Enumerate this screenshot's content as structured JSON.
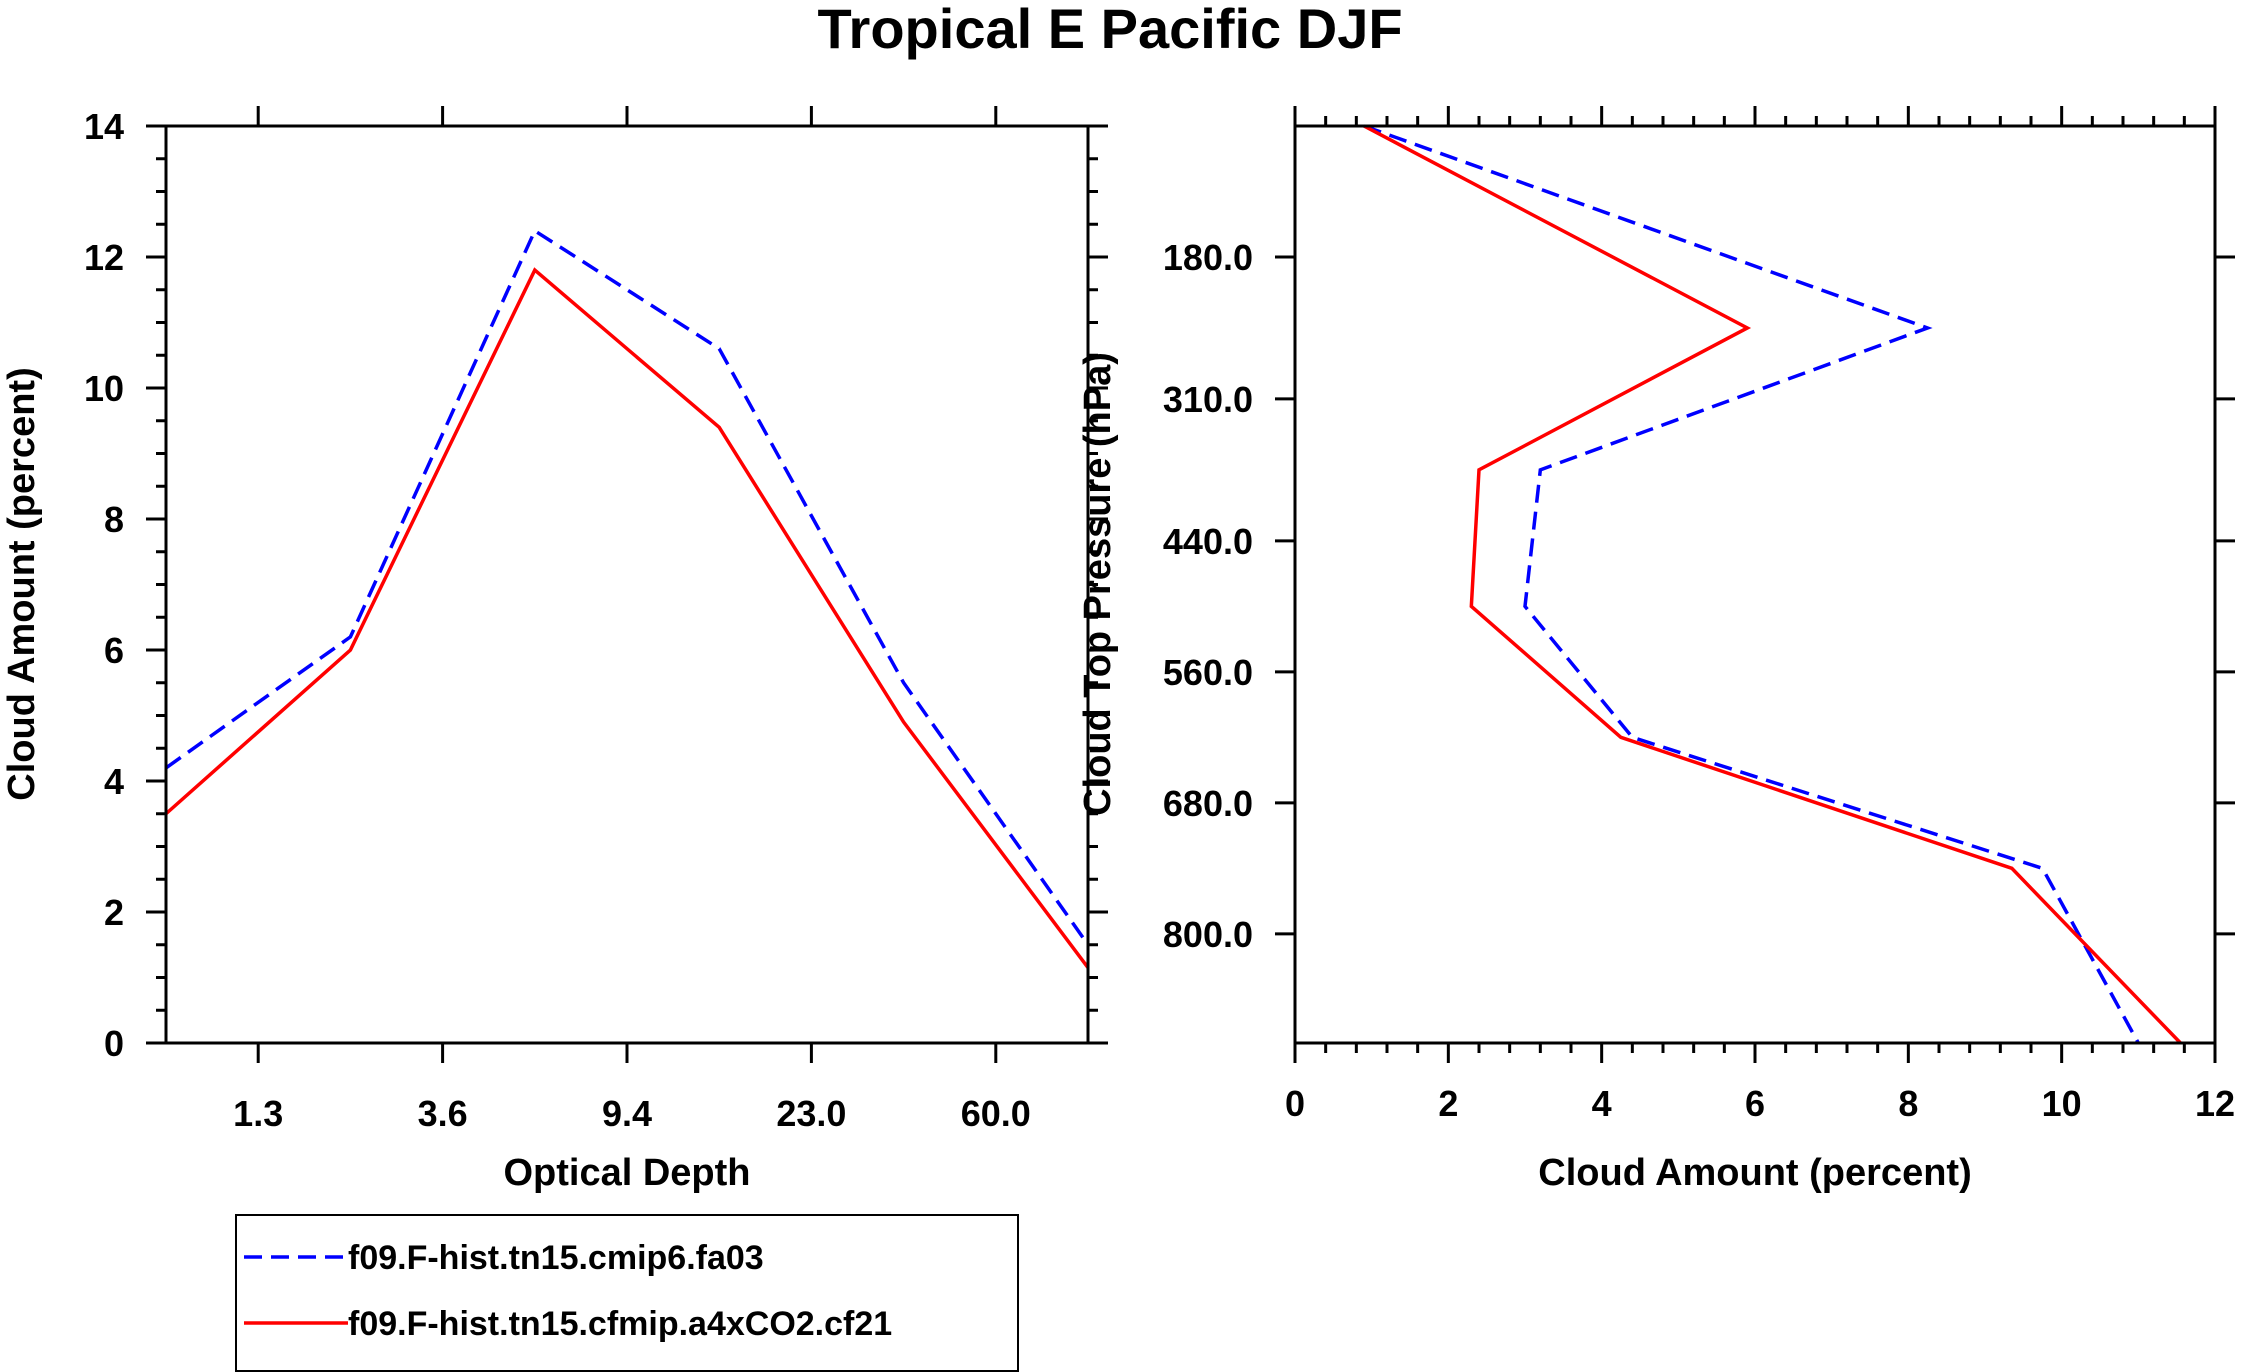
{
  "page": {
    "title": "Tropical E Pacific DJF"
  },
  "series_style": {
    "hist": {
      "color": "#0000ff",
      "dash": "dashed"
    },
    "a4x": {
      "color": "#ff0000",
      "dash": "solid"
    }
  },
  "legend": {
    "items": [
      {
        "label": "f09.F-hist.tn15.cmip6.fa03",
        "series": "hist"
      },
      {
        "label": "f09.F-hist.tn15.cfmip.a4xCO2.cf21",
        "series": "a4x"
      }
    ]
  },
  "chart_data": [
    {
      "type": "line",
      "title": "",
      "xlabel": "Optical Depth",
      "ylabel": "Cloud Amount (percent)",
      "x_tick_labels": [
        "1.3",
        "3.6",
        "9.4",
        "23.0",
        "60.0"
      ],
      "x_tick_positions": [
        1,
        3,
        5,
        7,
        9
      ],
      "xlim": [
        0,
        10
      ],
      "ylim": [
        0,
        14
      ],
      "y_ticks": [
        "0",
        "2",
        "4",
        "6",
        "8",
        "10",
        "12",
        "14"
      ],
      "y_tick_values": [
        0,
        2,
        4,
        6,
        8,
        10,
        12,
        14
      ],
      "x": [
        0,
        2,
        4,
        6,
        8,
        10
      ],
      "series": [
        {
          "name": "f09.F-hist.tn15.cmip6.fa03",
          "key": "hist",
          "values": [
            4.2,
            6.2,
            12.4,
            10.6,
            5.5,
            1.5
          ]
        },
        {
          "name": "f09.F-hist.tn15.cfmip.a4xCO2.cf21",
          "key": "a4x",
          "values": [
            3.5,
            6.0,
            11.8,
            9.4,
            4.9,
            1.15
          ]
        }
      ]
    },
    {
      "type": "line",
      "title": "",
      "xlabel": "Cloud Amount (percent)",
      "ylabel": "Cloud Top Pressure (hPa)",
      "x_ticks": [
        "0",
        "2",
        "4",
        "6",
        "8",
        "10",
        "12"
      ],
      "x_tick_values": [
        0,
        2,
        4,
        6,
        8,
        10,
        12
      ],
      "xlim": [
        0,
        12
      ],
      "ylim_reversed": [
        60,
        900
      ],
      "y_tick_labels": [
        "180.0",
        "310.0",
        "440.0",
        "560.0",
        "680.0",
        "800.0"
      ],
      "y_tick_values": [
        180,
        310,
        440,
        560,
        680,
        800
      ],
      "pressure": [
        60,
        245,
        375,
        500,
        620,
        740,
        900
      ],
      "series": [
        {
          "name": "f09.F-hist.tn15.cmip6.fa03",
          "key": "hist",
          "values": [
            0.9,
            8.25,
            3.2,
            3.0,
            4.4,
            9.75,
            11.0
          ]
        },
        {
          "name": "f09.F-hist.tn15.cfmip.a4xCO2.cf21",
          "key": "a4x",
          "values": [
            0.9,
            5.9,
            2.4,
            2.3,
            4.25,
            9.35,
            11.55
          ]
        }
      ]
    }
  ]
}
